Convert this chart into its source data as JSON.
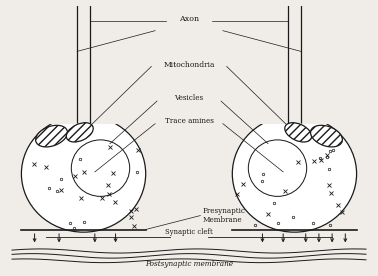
{
  "bg_color": "#f0ede8",
  "line_color": "#1a1a1a",
  "text_color": "#1a1a1a",
  "labels": {
    "axon": "Axon",
    "mitochondria": "Mitochondria",
    "vesicles": "Vesicles",
    "trace_amines": "Trace amines",
    "presynaptic": "Presynaptic",
    "membrane": "Membrane",
    "synaptic_cleft": "Synaptic cleft",
    "postsynaptic": "Postsynaptic membrane"
  },
  "figsize": [
    3.78,
    2.76
  ],
  "dpi": 100
}
